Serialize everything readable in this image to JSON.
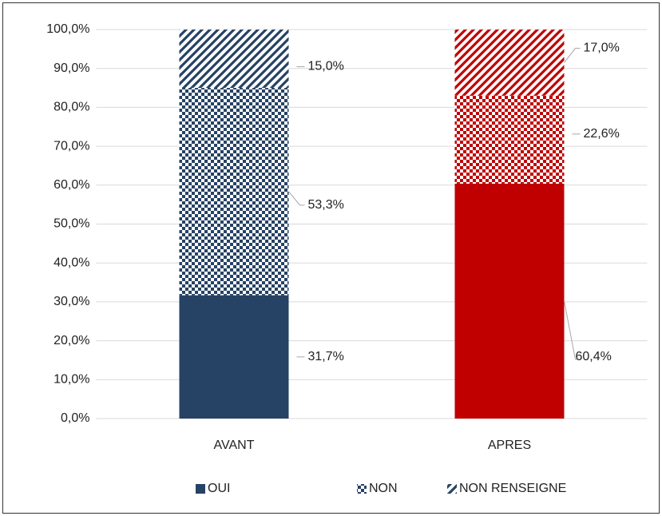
{
  "chart_data": {
    "type": "bar",
    "stacked": true,
    "categories": [
      "AVANT",
      "APRES"
    ],
    "category_colors": [
      "#264264",
      "#c00000"
    ],
    "series": [
      {
        "name": "OUI",
        "pattern": "solid",
        "values": [
          31.7,
          60.4
        ],
        "value_labels": [
          "31,7%",
          "60,4%"
        ]
      },
      {
        "name": "NON",
        "pattern": "checker",
        "values": [
          53.3,
          22.6
        ],
        "value_labels": [
          "53,3%",
          "22,6%"
        ]
      },
      {
        "name": "NON RENSEIGNE",
        "pattern": "diagonal",
        "values": [
          15.0,
          17.0
        ],
        "value_labels": [
          "15,0%",
          "17,0%"
        ]
      }
    ],
    "ylim": [
      0,
      100
    ],
    "yticks": [
      {
        "value": 0,
        "label": "0,0%"
      },
      {
        "value": 10,
        "label": "10,0%"
      },
      {
        "value": 20,
        "label": "20,0%"
      },
      {
        "value": 30,
        "label": "30,0%"
      },
      {
        "value": 40,
        "label": "40,0%"
      },
      {
        "value": 50,
        "label": "50,0%"
      },
      {
        "value": 60,
        "label": "60,0%"
      },
      {
        "value": 70,
        "label": "70,0%"
      },
      {
        "value": 80,
        "label": "80,0%"
      },
      {
        "value": 90,
        "label": "90,0%"
      },
      {
        "value": 100,
        "label": "100,0%"
      }
    ],
    "grid": true,
    "legend": "bottom"
  }
}
